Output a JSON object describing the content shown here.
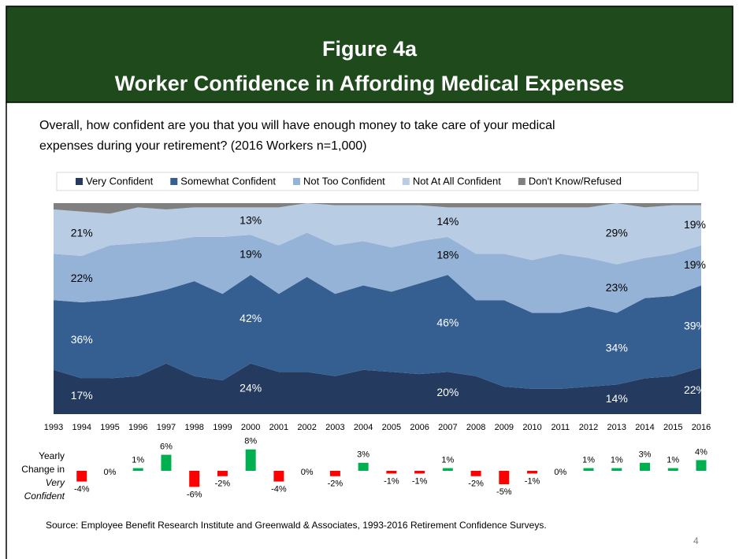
{
  "header": {
    "title_lines": [
      "Figure 4a",
      "Worker Confidence in Affording Medical Expenses"
    ]
  },
  "question": [
    "Overall, how confident are you that you will have enough money to take care of your medical",
    "expenses during your retirement? (2016 Workers n=1,000)"
  ],
  "chart_data": [
    {
      "type": "stacked_area",
      "categories": [
        "1993",
        "1994",
        "1995",
        "1996",
        "1997",
        "1998",
        "1999",
        "2000",
        "2001",
        "2002",
        "2003",
        "2004",
        "2005",
        "2006",
        "2007",
        "2008",
        "2009",
        "2010",
        "2011",
        "2012",
        "2013",
        "2014",
        "2015",
        "2016"
      ],
      "ylim": [
        0,
        100
      ],
      "legend": "top",
      "series": [
        {
          "name": "Very Confident",
          "color": "#243a5e",
          "label_color": "#ffffff",
          "values": [
            21,
            17,
            17,
            18,
            24,
            18,
            16,
            24,
            20,
            20,
            18,
            21,
            20,
            19,
            20,
            18,
            13,
            12,
            12,
            13,
            14,
            17,
            18,
            22
          ],
          "value_labels": [
            null,
            "17%",
            null,
            null,
            null,
            null,
            null,
            "24%",
            null,
            null,
            null,
            null,
            null,
            null,
            "20%",
            null,
            null,
            null,
            null,
            null,
            "14%",
            null,
            null,
            "22%"
          ]
        },
        {
          "name": "Somewhat Confident",
          "color": "#365f91",
          "label_color": "#ffffff",
          "values": [
            33,
            36,
            37,
            38,
            35,
            45,
            41,
            42,
            37,
            45,
            39,
            40,
            38,
            43,
            46,
            36,
            41,
            36,
            36,
            38,
            34,
            38,
            38,
            39
          ],
          "value_labels": [
            null,
            "36%",
            null,
            null,
            null,
            null,
            null,
            "42%",
            null,
            null,
            null,
            null,
            null,
            null,
            "46%",
            null,
            null,
            null,
            null,
            null,
            "34%",
            null,
            null,
            "39%"
          ]
        },
        {
          "name": "Not Too Confident",
          "color": "#95b3d7",
          "label_color": "#000000",
          "values": [
            22,
            22,
            26,
            25,
            23,
            21,
            27,
            19,
            23,
            21,
            23,
            21,
            21,
            20,
            18,
            22,
            22,
            25,
            28,
            23,
            23,
            19,
            20,
            19
          ],
          "value_labels": [
            null,
            "22%",
            null,
            null,
            null,
            null,
            null,
            "19%",
            null,
            null,
            null,
            null,
            null,
            null,
            "18%",
            null,
            null,
            null,
            null,
            null,
            "23%",
            null,
            null,
            "19%"
          ]
        },
        {
          "name": "Not At All Confident",
          "color": "#b8cce4",
          "label_color": "#000000",
          "values": [
            21,
            21,
            15,
            17,
            15,
            14,
            14,
            13,
            18,
            14,
            19,
            17,
            20,
            17,
            14,
            22,
            22,
            25,
            22,
            24,
            29,
            24,
            23,
            19
          ],
          "value_labels": [
            null,
            "21%",
            null,
            null,
            null,
            null,
            null,
            "13%",
            null,
            null,
            null,
            null,
            null,
            null,
            "14%",
            null,
            null,
            null,
            null,
            null,
            "29%",
            null,
            null,
            "19%"
          ]
        },
        {
          "name": "Don't Know/Refused",
          "color": "#808080",
          "label_color": "#000000",
          "values": [
            3,
            4,
            5,
            2,
            3,
            2,
            2,
            2,
            2,
            0,
            1,
            1,
            1,
            1,
            2,
            2,
            2,
            2,
            2,
            2,
            0,
            2,
            1,
            1
          ]
        }
      ]
    },
    {
      "type": "bar",
      "label_lines": [
        "Yearly",
        "Change in",
        "Very",
        "Confident"
      ],
      "categories": [
        "1993",
        "1994",
        "1995",
        "1996",
        "1997",
        "1998",
        "1999",
        "2000",
        "2001",
        "2002",
        "2003",
        "2004",
        "2005",
        "2006",
        "2007",
        "2008",
        "2009",
        "2010",
        "2011",
        "2012",
        "2013",
        "2014",
        "2015",
        "2016"
      ],
      "values": [
        null,
        -4,
        0,
        1,
        6,
        -6,
        -2,
        8,
        -4,
        0,
        -2,
        3,
        -1,
        -1,
        1,
        -2,
        -5,
        -1,
        0,
        1,
        1,
        3,
        1,
        4
      ],
      "value_labels": [
        null,
        "-4%",
        "0%",
        "1%",
        "6%",
        "-6%",
        "-2%",
        "8%",
        "-4%",
        "0%",
        "-2%",
        "3%",
        "-1%",
        "-1%",
        "1%",
        "-2%",
        "-5%",
        "-1%",
        "0%",
        "1%",
        "1%",
        "3%",
        "1%",
        "4%"
      ],
      "positive_color": "#00b050",
      "negative_color": "#ff0000"
    }
  ],
  "source": "Source:  Employee Benefit Research Institute and Greenwald & Associates, 1993-2016 Retirement Confidence Surveys.",
  "page_number": "4"
}
